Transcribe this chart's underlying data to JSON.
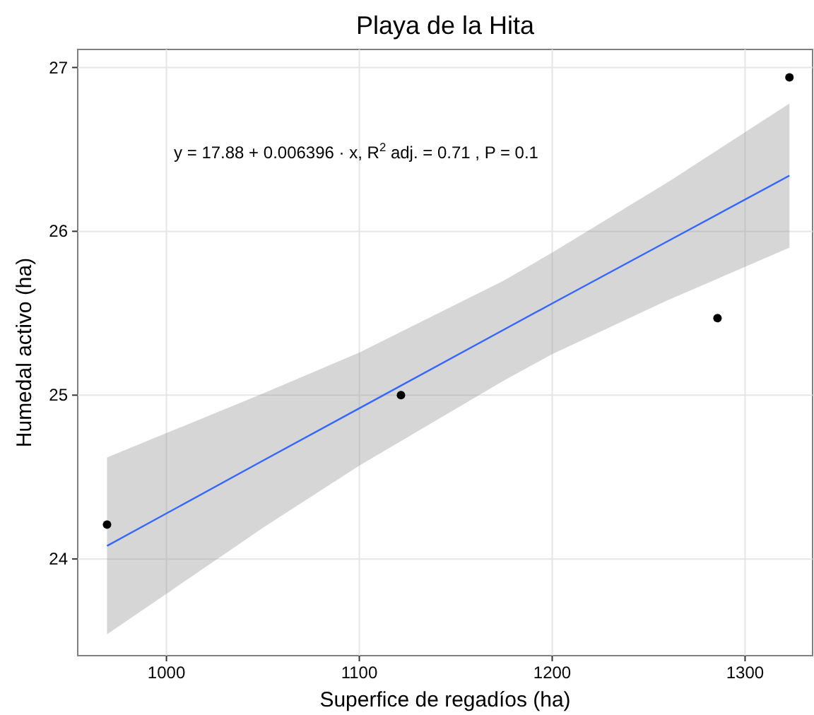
{
  "chart_data": {
    "type": "scatter",
    "title": "Playa de la Hita",
    "xlabel": "Superfice de regadíos (ha)",
    "ylabel": "Humedal activo (ha)",
    "annotations": [
      "y = 17.88 + 0.006396 · x,  R$^{2}$ adj. = 0.71 ,  P = 0.1"
    ],
    "xlim": [
      954,
      1335
    ],
    "xticks": [
      1000,
      1100,
      1200,
      1300
    ],
    "ylim": [
      23.41,
      27.11
    ],
    "yticks": [
      24,
      25,
      26,
      27
    ],
    "grid": true,
    "marker": "circle",
    "series": [
      {
        "type": "line",
        "marker": "none",
        "color": "#3366ff",
        "x": [
          969.2,
          1050,
          1100,
          1175,
          1200,
          1260,
          1323
        ],
        "values": [
          24.08,
          24.6,
          24.92,
          25.4,
          25.56,
          25.94,
          26.34
        ],
        "lower": [
          23.54,
          24.19,
          24.57,
          25.09,
          25.25,
          25.58,
          25.9
        ],
        "upper": [
          24.62,
          25.01,
          25.26,
          25.7,
          25.87,
          26.3,
          26.78
        ]
      },
      {
        "color": "#000000",
        "x": [
          969.2,
          1121.6,
          1285.7,
          1323
        ],
        "values": [
          24.21,
          25.0,
          25.47,
          26.94
        ]
      }
    ]
  }
}
